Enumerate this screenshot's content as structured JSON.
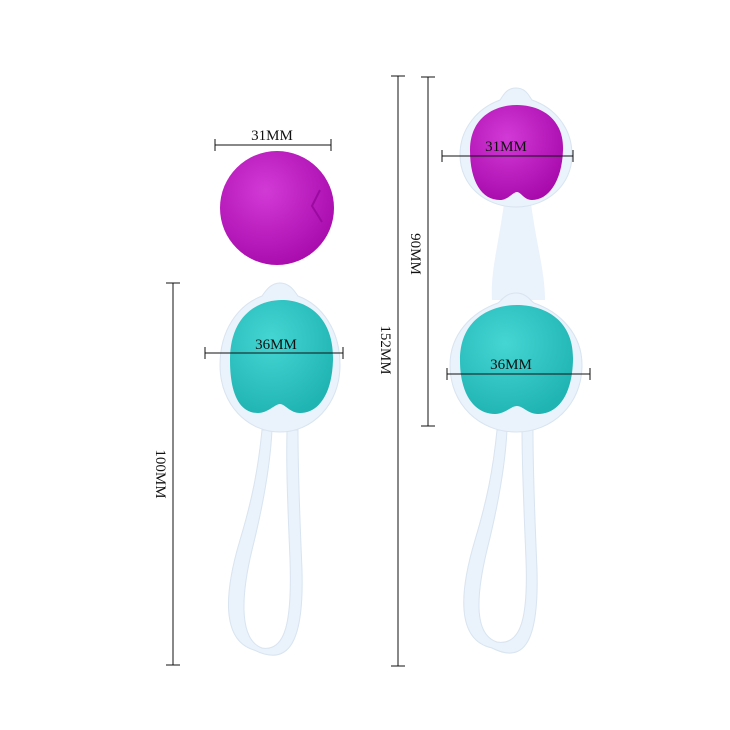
{
  "labels": {
    "single_ball_diameter": "31MM",
    "left_teal_diameter": "36MM",
    "left_length": "100MM",
    "right_total_length": "152MM",
    "right_balls_length": "90MM",
    "right_purple_diameter": "31MM",
    "right_teal_diameter": "36MM"
  },
  "colors": {
    "purple": "#c414c8",
    "teal": "#2cc6c4",
    "shell": "#e8f1fa"
  }
}
